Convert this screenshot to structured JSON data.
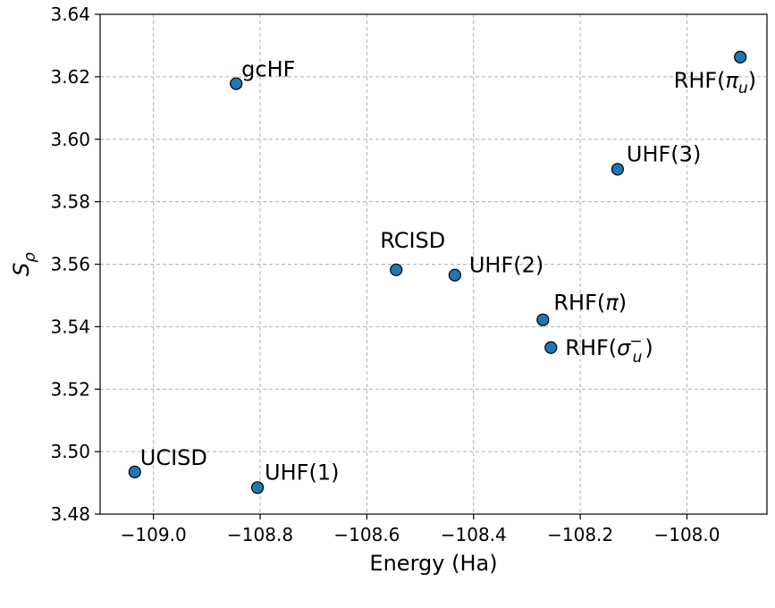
{
  "chart_data": {
    "type": "scatter",
    "title": "",
    "xlabel": "Energy (Ha)",
    "ylabel": "S_ρ",
    "xlim": [
      -109.1,
      -107.85
    ],
    "ylim": [
      3.48,
      3.64
    ],
    "xticks": [
      -109.0,
      -108.8,
      -108.6,
      -108.4,
      -108.2,
      -108.0
    ],
    "xtick_labels": [
      "−109.0",
      "−108.8",
      "−108.6",
      "−108.4",
      "−108.2",
      "−108.0"
    ],
    "yticks": [
      3.48,
      3.5,
      3.52,
      3.54,
      3.56,
      3.58,
      3.6,
      3.62,
      3.64
    ],
    "ytick_labels": [
      "3.48",
      "3.50",
      "3.52",
      "3.54",
      "3.56",
      "3.58",
      "3.60",
      "3.62",
      "3.64"
    ],
    "grid": true,
    "marker_color": "#1f77b4",
    "points": [
      {
        "label": "gcHF",
        "x": -108.845,
        "y": 3.6178
      },
      {
        "label": "RHF(πu)",
        "x": -107.9,
        "y": 3.6263
      },
      {
        "label": "UHF(3)",
        "x": -108.13,
        "y": 3.5904
      },
      {
        "label": "RCISD",
        "x": -108.545,
        "y": 3.5582
      },
      {
        "label": "UHF(2)",
        "x": -108.435,
        "y": 3.5565
      },
      {
        "label": "RHF(π)",
        "x": -108.27,
        "y": 3.5422
      },
      {
        "label": "RHF(σu−)",
        "x": -108.255,
        "y": 3.5333
      },
      {
        "label": "UCISD",
        "x": -109.035,
        "y": 3.4935
      },
      {
        "label": "UHF(1)",
        "x": -108.805,
        "y": 3.4885
      }
    ]
  }
}
